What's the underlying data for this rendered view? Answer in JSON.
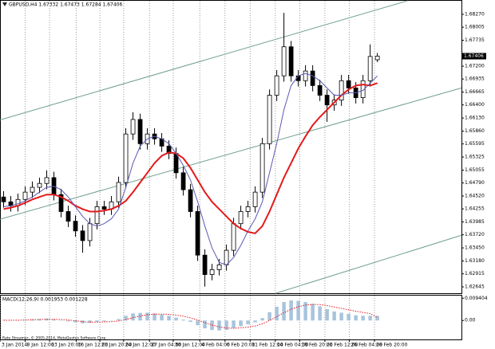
{
  "chart_data": [
    {
      "type": "candlestick",
      "title": "GBPUSD,H4 1.67332 1.67473 1.67284 1.67406",
      "open": [
        1.645,
        1.644,
        1.6432,
        1.6445,
        1.646,
        1.647,
        1.6478,
        1.649,
        1.6455,
        1.642,
        1.64,
        1.638,
        1.636,
        1.6395,
        1.643,
        1.6425,
        1.644,
        1.648,
        1.658,
        1.661,
        1.656,
        1.658,
        1.657,
        1.6555,
        1.654,
        1.65,
        1.6465,
        1.642,
        1.633,
        1.629,
        1.63,
        1.631,
        1.634,
        1.6395,
        1.642,
        1.643,
        1.646,
        1.656,
        1.666,
        1.67,
        1.676,
        1.67,
        1.669,
        1.671,
        1.668,
        1.666,
        1.664,
        1.665,
        1.669,
        1.6675,
        1.6655,
        1.669,
        1.67332
      ],
      "high": [
        1.6462,
        1.6452,
        1.6457,
        1.6472,
        1.6482,
        1.649,
        1.6505,
        1.6502,
        1.6467,
        1.6432,
        1.6412,
        1.6392,
        1.6407,
        1.6442,
        1.6442,
        1.6452,
        1.6492,
        1.6592,
        1.6625,
        1.6622,
        1.6592,
        1.6592,
        1.6582,
        1.6567,
        1.6552,
        1.6512,
        1.6477,
        1.6432,
        1.6342,
        1.6312,
        1.6322,
        1.6352,
        1.6407,
        1.6432,
        1.6442,
        1.6472,
        1.6572,
        1.6672,
        1.6712,
        1.683,
        1.6772,
        1.6712,
        1.6722,
        1.6722,
        1.6692,
        1.6672,
        1.6662,
        1.6702,
        1.6702,
        1.6687,
        1.6702,
        1.6765,
        1.67473
      ],
      "low": [
        1.6428,
        1.642,
        1.642,
        1.6433,
        1.6448,
        1.6458,
        1.6466,
        1.6443,
        1.6408,
        1.6388,
        1.6368,
        1.6335,
        1.6348,
        1.6383,
        1.6413,
        1.6413,
        1.6428,
        1.6468,
        1.6568,
        1.6548,
        1.6548,
        1.6558,
        1.6543,
        1.6528,
        1.6488,
        1.6453,
        1.6408,
        1.6318,
        1.6265,
        1.6278,
        1.6288,
        1.6298,
        1.6328,
        1.6383,
        1.6408,
        1.6418,
        1.6448,
        1.6548,
        1.6648,
        1.6688,
        1.6688,
        1.6678,
        1.6678,
        1.6668,
        1.6648,
        1.6605,
        1.6628,
        1.6638,
        1.6663,
        1.6643,
        1.6643,
        1.6678,
        1.67284
      ],
      "close": [
        1.644,
        1.6432,
        1.6445,
        1.646,
        1.647,
        1.6478,
        1.649,
        1.6455,
        1.642,
        1.64,
        1.638,
        1.636,
        1.6395,
        1.643,
        1.6425,
        1.644,
        1.648,
        1.658,
        1.661,
        1.656,
        1.658,
        1.657,
        1.6555,
        1.654,
        1.65,
        1.6465,
        1.642,
        1.633,
        1.629,
        1.63,
        1.631,
        1.634,
        1.6395,
        1.642,
        1.643,
        1.646,
        1.656,
        1.666,
        1.67,
        1.676,
        1.67,
        1.669,
        1.671,
        1.668,
        1.666,
        1.664,
        1.665,
        1.669,
        1.6675,
        1.6655,
        1.669,
        1.674,
        1.67406
      ],
      "current_price": 1.67406,
      "overlays": [
        {
          "color": "#e41a1a",
          "values": [
            1.6425,
            1.6428,
            1.6432,
            1.6438,
            1.6445,
            1.645,
            1.6455,
            1.6455,
            1.645,
            1.6442,
            1.6432,
            1.6425,
            1.642,
            1.642,
            1.6422,
            1.6425,
            1.6432,
            1.6442,
            1.646,
            1.648,
            1.65,
            1.652,
            1.6535,
            1.6542,
            1.654,
            1.653,
            1.651,
            1.6485,
            1.646,
            1.644,
            1.6425,
            1.641,
            1.6395,
            1.6385,
            1.6378,
            1.6375,
            1.639,
            1.642,
            1.6455,
            1.649,
            1.652,
            1.655,
            1.6575,
            1.6598,
            1.6615,
            1.663,
            1.6645,
            1.666,
            1.6672,
            1.668,
            1.6682,
            1.668,
            1.6685
          ]
        },
        {
          "color": "#5a5ab4",
          "values": [
            1.643,
            1.6432,
            1.6436,
            1.6442,
            1.645,
            1.646,
            1.647,
            1.6472,
            1.6465,
            1.645,
            1.643,
            1.641,
            1.6395,
            1.639,
            1.6395,
            1.6405,
            1.6425,
            1.647,
            1.652,
            1.6555,
            1.657,
            1.6575,
            1.657,
            1.656,
            1.654,
            1.6515,
            1.6485,
            1.644,
            1.639,
            1.6345,
            1.6315,
            1.631,
            1.6325,
            1.635,
            1.638,
            1.6405,
            1.644,
            1.65,
            1.656,
            1.663,
            1.668,
            1.67,
            1.6705,
            1.67,
            1.669,
            1.6675,
            1.666,
            1.666,
            1.6665,
            1.6665,
            1.667,
            1.6685,
            1.67
          ]
        }
      ],
      "trendlines": [
        {
          "color": "#6f9f8f",
          "x": [
            0,
            56.7
          ],
          "y": [
            1.6609,
            1.6855
          ]
        },
        {
          "color": "#6f9f8f",
          "x": [
            0,
            64.2
          ],
          "y": [
            1.6404,
            1.6675
          ]
        },
        {
          "color": "#6f9f8f",
          "x": [
            38.3,
            64.2
          ],
          "y": [
            1.6251,
            1.6371
          ]
        }
      ],
      "xlim": [
        0,
        64.2
      ],
      "ylim": [
        1.62514,
        1.68549
      ],
      "yticks": [
        {
          "value": 1.6827,
          "label": "1.68270"
        },
        1.68005,
        1.67735,
        {
          "value": 1.672,
          "label": "1.67200"
        },
        1.66935,
        1.66665,
        {
          "value": 1.664,
          "label": "1.66400"
        },
        {
          "value": 1.6613,
          "label": "1.66130"
        },
        {
          "value": 1.6586,
          "label": "1.65860"
        },
        1.65595,
        1.65325,
        1.65055,
        {
          "value": 1.6479,
          "label": "1.64790"
        },
        {
          "value": 1.6452,
          "label": "1.64520"
        },
        1.64255,
        1.63985,
        {
          "value": 1.6372,
          "label": "1.63720"
        },
        {
          "value": 1.6345,
          "label": "1.63450"
        },
        {
          "value": 1.6318,
          "label": "1.63180"
        },
        1.62915,
        1.62645
      ],
      "xticks": [
        {
          "value": 0,
          "label": "3 Jan 2014"
        },
        {
          "value": 3.5,
          "label": "8 Jan 12:00"
        },
        {
          "value": 6.9,
          "label": "13 Jan 20:00"
        },
        {
          "value": 10.6,
          "label": "16 Jan 12:00"
        },
        {
          "value": 13.9,
          "label": "21 Jan 20:00"
        },
        {
          "value": 17.2,
          "label": "24 Jan 12:00"
        },
        {
          "value": 20.8,
          "label": "27 Jan 04:00"
        },
        {
          "value": 24.1,
          "label": "30 Jan 12:00"
        },
        {
          "value": 27.8,
          "label": "4 Feb 04:00"
        },
        {
          "value": 31.3,
          "label": "6 Feb 20:00"
        },
        {
          "value": 34.8,
          "label": "11 Feb 12:00"
        },
        {
          "value": 38.3,
          "label": "14 Feb 04:00"
        },
        {
          "value": 41.7,
          "label": "18 Feb 20:00"
        },
        {
          "value": 45.2,
          "label": "21 Feb 12:00"
        },
        {
          "value": 48.6,
          "label": "26 Feb 04:00"
        },
        {
          "value": 52.1,
          "label": "28 Feb 20:00"
        }
      ]
    },
    {
      "type": "macd",
      "title": "MACD(12,26,9) 0.001953 0.001228",
      "footer": "Rate Streamer, © 2005-2014, MetaQuotes Software Corp.",
      "histogram": {
        "color": "#a8c4dc",
        "values": [
          0.0002,
          0.0001,
          0.0001,
          0.0003,
          0.0005,
          0.0006,
          0.0008,
          0.0005,
          0.0001,
          -0.0004,
          -0.0008,
          -0.0012,
          -0.001,
          -0.0006,
          -0.0004,
          -0.0001,
          0.0006,
          0.002,
          0.003,
          0.0032,
          0.0033,
          0.003,
          0.0025,
          0.002,
          0.0012,
          0.0004,
          -0.0006,
          -0.002,
          -0.0033,
          -0.004,
          -0.0042,
          -0.004,
          -0.0032,
          -0.0024,
          -0.0016,
          -0.0008,
          0.001,
          0.0035,
          0.0058,
          0.0078,
          0.0085,
          0.0083,
          0.0078,
          0.007,
          0.006,
          0.0048,
          0.0038,
          0.0033,
          0.0028,
          0.0022,
          0.002,
          0.002,
          0.001953
        ]
      },
      "signal": {
        "color": "#e41a1a",
        "values": [
          0.0001,
          0.0001,
          0.0001,
          0.0002,
          0.0003,
          0.0004,
          0.0005,
          0.0005,
          0.0004,
          0.0002,
          -0.0001,
          -0.0005,
          -0.0007,
          -0.0007,
          -0.0006,
          -0.0005,
          -0.0002,
          0.0004,
          0.0012,
          0.0019,
          0.0024,
          0.0027,
          0.0027,
          0.0026,
          0.0023,
          0.0018,
          0.0011,
          0.0002,
          -0.0009,
          -0.0019,
          -0.0027,
          -0.0032,
          -0.0033,
          -0.0031,
          -0.0028,
          -0.0023,
          -0.0014,
          0.0,
          0.0016,
          0.0033,
          0.0047,
          0.0058,
          0.0065,
          0.0068,
          0.0067,
          0.0063,
          0.0057,
          0.0051,
          0.0045,
          0.0039,
          0.0034,
          0.0029,
          0.001228
        ]
      },
      "xlim": [
        0,
        64.2
      ],
      "ylim": [
        -0.008,
        0.0105
      ],
      "yticks": [
        0.009404,
        {
          "value": 0,
          "label": "0.00"
        }
      ]
    }
  ]
}
